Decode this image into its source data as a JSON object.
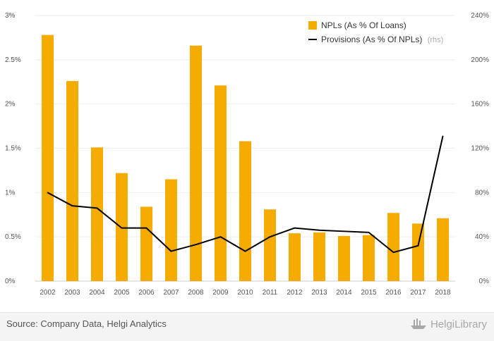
{
  "chart_data": {
    "type": "bar",
    "categories": [
      "2002",
      "2003",
      "2004",
      "2005",
      "2006",
      "2007",
      "2008",
      "2009",
      "2010",
      "2011",
      "2012",
      "2013",
      "2014",
      "2015",
      "2016",
      "2017",
      "2018"
    ],
    "series": [
      {
        "name": "NPLs (As % Of Loans)",
        "type": "bar",
        "axis": "left",
        "color": "#f5ab00",
        "values": [
          2.78,
          2.26,
          1.51,
          1.22,
          0.84,
          1.15,
          2.66,
          2.21,
          1.58,
          0.81,
          0.54,
          0.55,
          0.51,
          0.52,
          0.77,
          0.65,
          0.71
        ]
      },
      {
        "name": "Provisions (As % Of NPLs)",
        "name_suffix": "(rhs)",
        "type": "line",
        "axis": "right",
        "color": "#000000",
        "values": [
          80,
          68,
          66,
          48,
          48,
          27,
          33,
          40,
          27,
          40,
          48,
          46,
          45,
          44,
          26,
          32,
          131
        ]
      }
    ],
    "left_axis": {
      "ticks": [
        "0%",
        "0.5%",
        "1%",
        "1.5%",
        "2%",
        "2.5%",
        "3%"
      ],
      "values": [
        0,
        0.5,
        1,
        1.5,
        2,
        2.5,
        3
      ],
      "ylim": [
        0,
        3
      ]
    },
    "right_axis": {
      "ticks": [
        "0%",
        "40%",
        "80%",
        "120%",
        "160%",
        "200%",
        "240%"
      ],
      "values": [
        0,
        40,
        80,
        120,
        160,
        200,
        240
      ],
      "ylim": [
        0,
        240
      ]
    },
    "grid": true,
    "legend_position": "top-right",
    "title": "",
    "xlabel": "",
    "ylabel": ""
  },
  "footer": {
    "source": "Source: Company Data, Helgi Analytics",
    "brand": "HelgiLibrary"
  }
}
